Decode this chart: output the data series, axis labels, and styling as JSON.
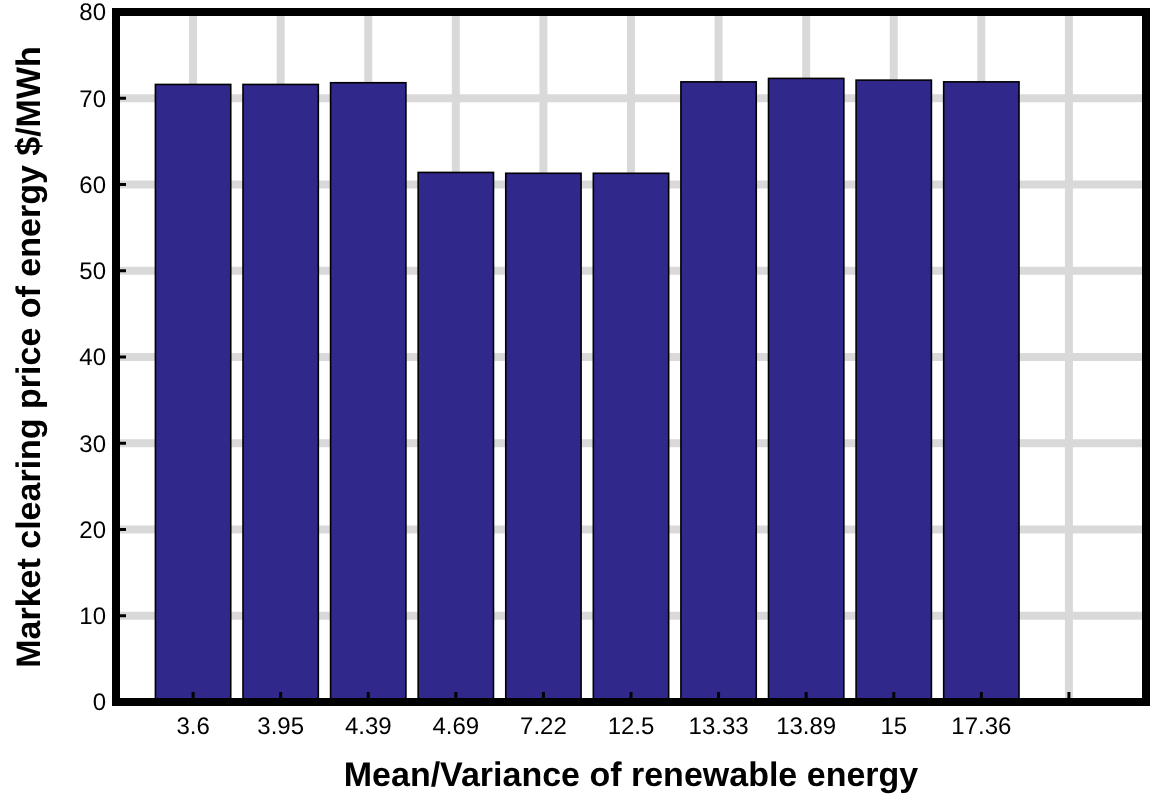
{
  "chart_data": {
    "type": "bar",
    "xlabel": "Mean/Variance of renewable energy",
    "ylabel": "Market clearing price of energy $/MWh",
    "categories": [
      "3.6",
      "3.95",
      "4.39",
      "4.69",
      "7.22",
      "12.5",
      "13.33",
      "13.89",
      "15",
      "17.36",
      null
    ],
    "values": [
      71.6,
      71.6,
      71.8,
      61.4,
      61.3,
      61.3,
      71.9,
      72.3,
      72.1,
      71.9,
      null
    ],
    "color": "#30288a",
    "ylim": [
      0,
      80
    ],
    "yticks": [
      0,
      10,
      20,
      30,
      40,
      50,
      60,
      70,
      80
    ],
    "grid": true
  }
}
